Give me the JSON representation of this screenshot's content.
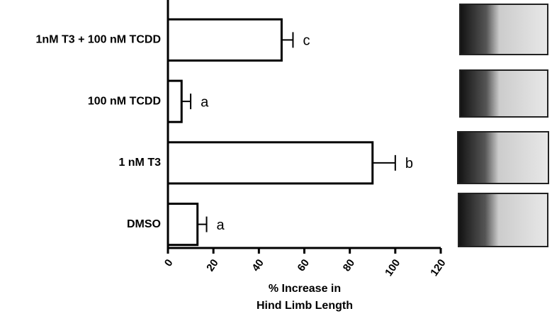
{
  "chart_data": {
    "type": "hbar",
    "categories": [
      "1nM T3 + 100 nM TCDD",
      "100 nM TCDD",
      "1 nM T3",
      "DMSO"
    ],
    "values": [
      50,
      6,
      90,
      13
    ],
    "errors": [
      5,
      4,
      10,
      4
    ],
    "significance": [
      "c",
      "a",
      "b",
      "a"
    ],
    "xlabel": [
      "% Increase in",
      "Hind Limb Length"
    ],
    "xlim": [
      0,
      120
    ],
    "xticks": [
      0,
      20,
      40,
      60,
      80,
      100,
      120
    ],
    "color": "#ffffff",
    "grid": false
  }
}
